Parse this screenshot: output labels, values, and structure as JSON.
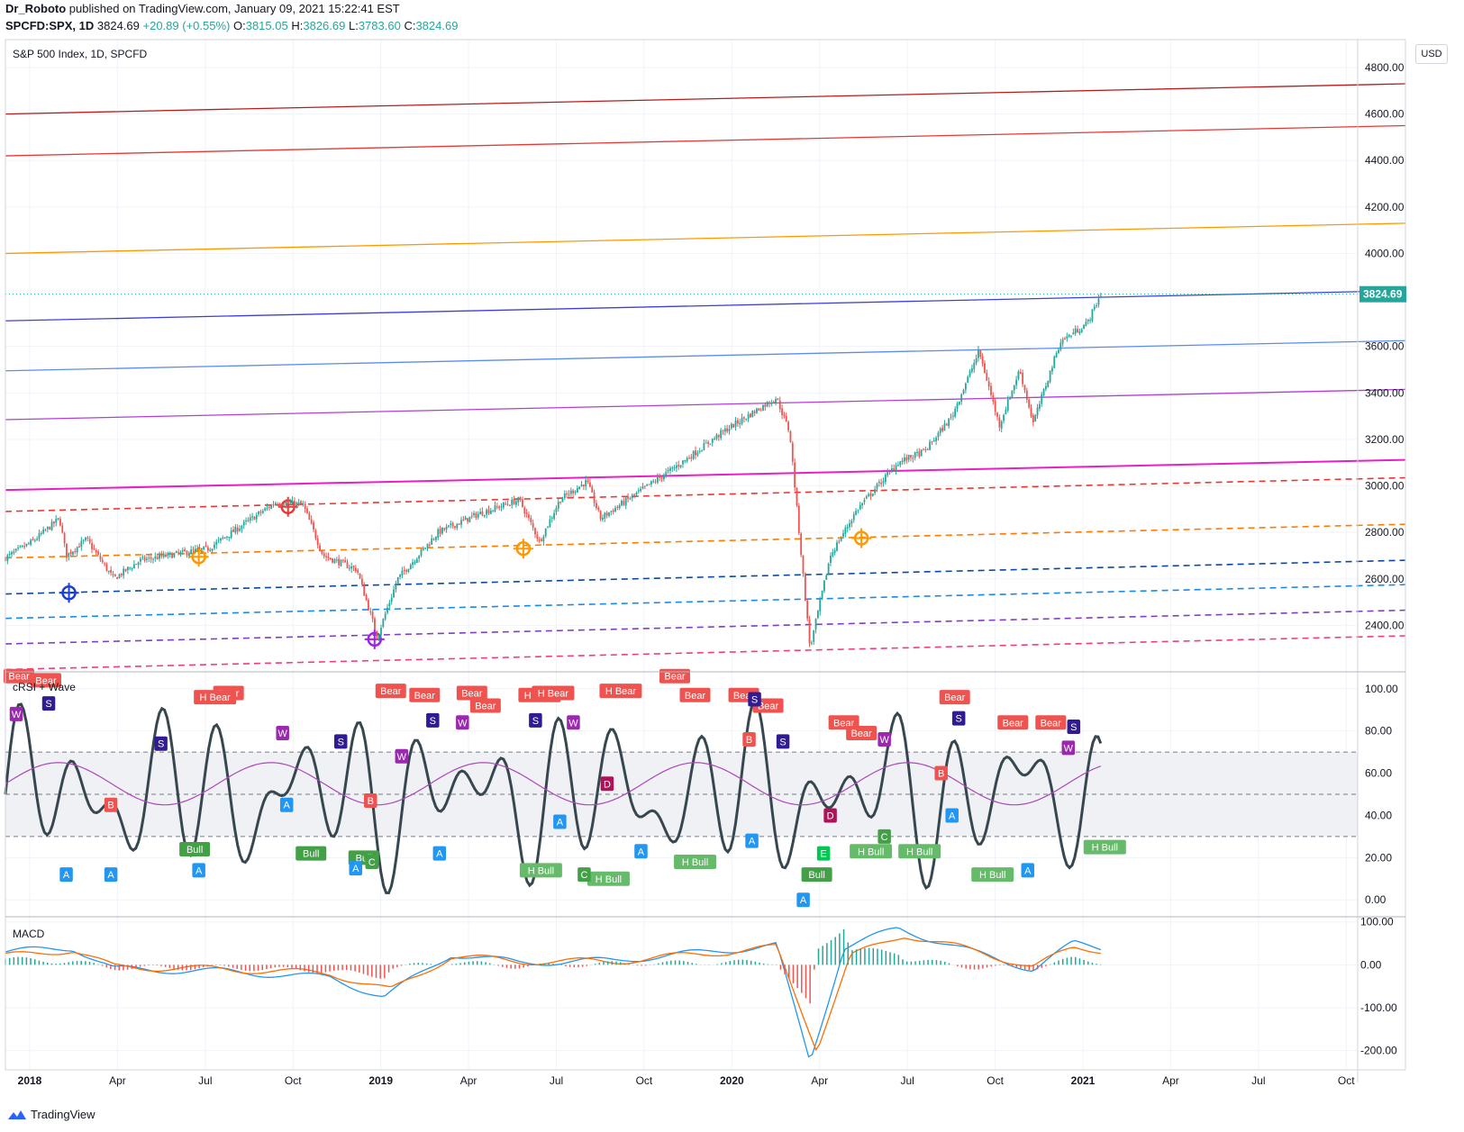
{
  "header": {
    "author": "Dr_Roboto",
    "published": "published on TradingView.com, January 09, 2021 15:22:41 EST"
  },
  "ohlc": {
    "symbol": "SPCFD:SPX, 1D",
    "last": "3824.69",
    "change": "+20.89 (+0.55%)",
    "o_label": "O:",
    "o": "3815.05",
    "h_label": "H:",
    "h": "3826.69",
    "l_label": "L:",
    "l": "3783.60",
    "c_label": "C:",
    "c": "3824.69"
  },
  "panes": {
    "main_title": "S&P 500 Index, 1D, SPCFD",
    "rsi_title": "cRSI + Wave",
    "macd_title": "MACD"
  },
  "currency": "USD",
  "footer": {
    "brand": "TradingView"
  },
  "colors": {
    "up": "#26a69a",
    "down": "#ef5350",
    "grid": "#f0f3fa",
    "price_tag": "#26a69a",
    "rsi_line": "#37474f",
    "rsi_ma": "#ab47bc",
    "macd_line": "#2196f3",
    "signal_line": "#ff6d00"
  },
  "chart_data": [
    {
      "type": "candlestick",
      "title": "S&P 500 Index, 1D, SPCFD",
      "x_ticks": [
        "2018",
        "Apr",
        "Jul",
        "Oct",
        "2019",
        "Apr",
        "Jul",
        "Oct",
        "2020",
        "Apr",
        "Jul",
        "Oct",
        "2021",
        "Apr",
        "Jul",
        "Oct"
      ],
      "y_ticks": [
        "4800.00",
        "4600.00",
        "4400.00",
        "4200.00",
        "4000.00",
        "3600.00",
        "3400.00",
        "3200.00",
        "3000.00",
        "2800.00",
        "2600.00",
        "2400.00"
      ],
      "ylim": [
        2200,
        4920
      ],
      "last_price": "3824.69",
      "close_path": [
        {
          "t": 0.0,
          "v": 2690
        },
        {
          "t": 0.02,
          "v": 2760
        },
        {
          "t": 0.04,
          "v": 2860
        },
        {
          "t": 0.045,
          "v": 2700
        },
        {
          "t": 0.06,
          "v": 2770
        },
        {
          "t": 0.08,
          "v": 2600
        },
        {
          "t": 0.1,
          "v": 2680
        },
        {
          "t": 0.12,
          "v": 2700
        },
        {
          "t": 0.15,
          "v": 2730
        },
        {
          "t": 0.18,
          "v": 2850
        },
        {
          "t": 0.2,
          "v": 2930
        },
        {
          "t": 0.22,
          "v": 2920
        },
        {
          "t": 0.235,
          "v": 2700
        },
        {
          "t": 0.26,
          "v": 2640
        },
        {
          "t": 0.275,
          "v": 2350
        },
        {
          "t": 0.29,
          "v": 2600
        },
        {
          "t": 0.32,
          "v": 2800
        },
        {
          "t": 0.35,
          "v": 2880
        },
        {
          "t": 0.38,
          "v": 2940
        },
        {
          "t": 0.395,
          "v": 2760
        },
        {
          "t": 0.41,
          "v": 2940
        },
        {
          "t": 0.43,
          "v": 3020
        },
        {
          "t": 0.44,
          "v": 2860
        },
        {
          "t": 0.47,
          "v": 2980
        },
        {
          "t": 0.5,
          "v": 3100
        },
        {
          "t": 0.53,
          "v": 3230
        },
        {
          "t": 0.57,
          "v": 3380
        },
        {
          "t": 0.58,
          "v": 3230
        },
        {
          "t": 0.595,
          "v": 2300
        },
        {
          "t": 0.61,
          "v": 2700
        },
        {
          "t": 0.63,
          "v": 2900
        },
        {
          "t": 0.66,
          "v": 3100
        },
        {
          "t": 0.68,
          "v": 3150
        },
        {
          "t": 0.7,
          "v": 3300
        },
        {
          "t": 0.72,
          "v": 3580
        },
        {
          "t": 0.735,
          "v": 3260
        },
        {
          "t": 0.75,
          "v": 3500
        },
        {
          "t": 0.76,
          "v": 3270
        },
        {
          "t": 0.78,
          "v": 3620
        },
        {
          "t": 0.8,
          "v": 3700
        },
        {
          "t": 0.81,
          "v": 3825
        }
      ]
    },
    {
      "type": "line",
      "title": "cRSI + Wave",
      "y_ticks": [
        "100.00",
        "80.00",
        "60.00",
        "40.00",
        "20.00",
        "0.00"
      ],
      "ylim": [
        -8,
        108
      ],
      "bands": [
        70,
        50,
        30
      ],
      "labels": [
        "Bear",
        "H Bear",
        "Bull",
        "H Bull",
        "A",
        "B",
        "C",
        "D",
        "E",
        "S",
        "W"
      ]
    },
    {
      "type": "line",
      "title": "MACD",
      "y_ticks": [
        "100.00",
        "0.00",
        "-100.00",
        "-200.00"
      ],
      "ylim": [
        -245,
        112
      ],
      "series": [
        {
          "values": [
            {
              "t": 0.0,
              "v": 30
            },
            {
              "t": 0.05,
              "v": 40
            },
            {
              "t": 0.08,
              "v": -10
            },
            {
              "t": 0.16,
              "v": -15
            },
            {
              "t": 0.24,
              "v": -30
            },
            {
              "t": 0.28,
              "v": -75
            },
            {
              "t": 0.33,
              "v": 25
            },
            {
              "t": 0.38,
              "v": 5
            },
            {
              "t": 0.45,
              "v": 10
            },
            {
              "t": 0.57,
              "v": 45
            },
            {
              "t": 0.595,
              "v": -225
            },
            {
              "t": 0.62,
              "v": 40
            },
            {
              "t": 0.66,
              "v": 85
            },
            {
              "t": 0.72,
              "v": 25
            },
            {
              "t": 0.76,
              "v": -10
            },
            {
              "t": 0.79,
              "v": 50
            },
            {
              "t": 0.81,
              "v": 40
            }
          ]
        },
        {
          "values": [
            {
              "t": 0.0,
              "v": 20
            },
            {
              "t": 0.05,
              "v": 35
            },
            {
              "t": 0.08,
              "v": -5
            },
            {
              "t": 0.16,
              "v": -10
            },
            {
              "t": 0.24,
              "v": -20
            },
            {
              "t": 0.285,
              "v": -60
            },
            {
              "t": 0.33,
              "v": 20
            },
            {
              "t": 0.38,
              "v": 8
            },
            {
              "t": 0.45,
              "v": 8
            },
            {
              "t": 0.57,
              "v": 40
            },
            {
              "t": 0.6,
              "v": -195
            },
            {
              "t": 0.625,
              "v": 20
            },
            {
              "t": 0.665,
              "v": 70
            },
            {
              "t": 0.72,
              "v": 30
            },
            {
              "t": 0.76,
              "v": -5
            },
            {
              "t": 0.79,
              "v": 40
            },
            {
              "t": 0.81,
              "v": 35
            }
          ]
        }
      ]
    }
  ]
}
